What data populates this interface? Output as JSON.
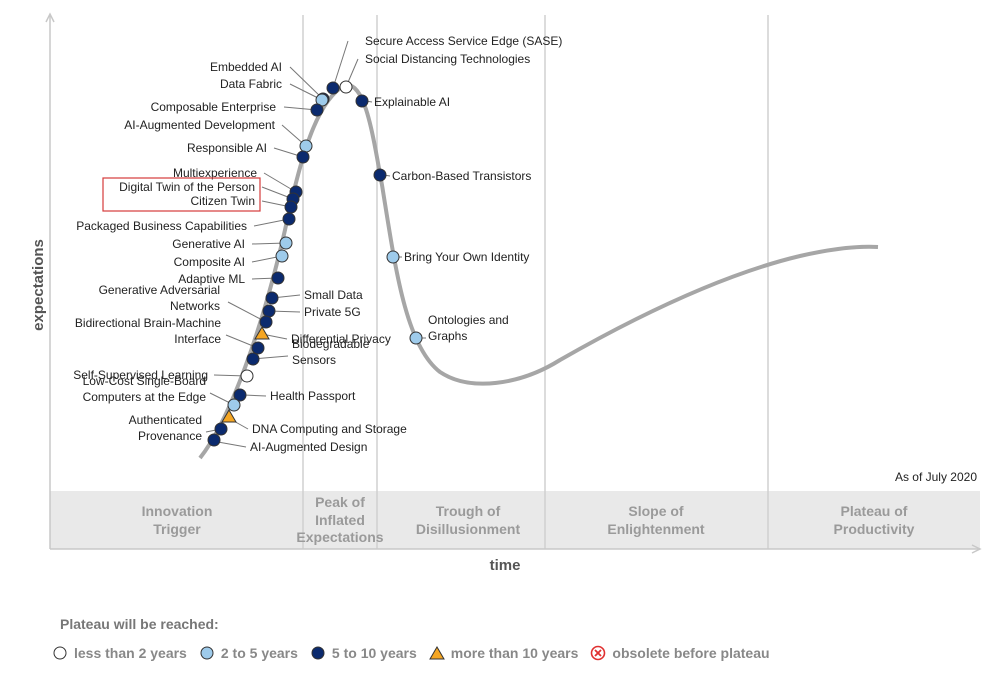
{
  "chart_data": {
    "type": "scatter",
    "ylabel": "expectations",
    "xlabel": "time",
    "as_of": "As of July 2020",
    "phases": [
      "Innovation Trigger",
      "Peak of Inflated Expectations",
      "Trough of Disillusionment",
      "Slope of Enlightenment",
      "Plateau of Productivity"
    ],
    "legend_title": "Plateau will be reached:",
    "legend": [
      {
        "key": "lt2",
        "label": "less than 2 years",
        "fill": "#ffffff"
      },
      {
        "key": "2to5",
        "label": "2 to 5 years",
        "fill": "#9ecbeb"
      },
      {
        "key": "5to10",
        "label": "5 to 10 years",
        "fill": "#0b2a6e"
      },
      {
        "key": "gt10",
        "label": "more than 10 years",
        "fill": "#f5a623"
      },
      {
        "key": "obsolete",
        "label": "obsolete before plateau",
        "fill": "#e03030"
      }
    ],
    "highlighted": "Digital Twin of the Person",
    "points": [
      {
        "name": "Secure Access Service Edge (SASE)",
        "category": "5to10"
      },
      {
        "name": "Social Distancing Technologies",
        "category": "lt2"
      },
      {
        "name": "Embedded AI",
        "category": "5to10"
      },
      {
        "name": "Data Fabric",
        "category": "2to5"
      },
      {
        "name": "Explainable AI",
        "category": "5to10"
      },
      {
        "name": "Composable Enterprise",
        "category": "5to10"
      },
      {
        "name": "AI-Augmented Development",
        "category": "2to5"
      },
      {
        "name": "Responsible AI",
        "category": "5to10"
      },
      {
        "name": "Carbon-Based Transistors",
        "category": "5to10"
      },
      {
        "name": "Multiexperience",
        "category": "5to10"
      },
      {
        "name": "Digital Twin of the Person",
        "category": "5to10"
      },
      {
        "name": "Citizen Twin",
        "category": "5to10"
      },
      {
        "name": "Packaged Business Capabilities",
        "category": "5to10"
      },
      {
        "name": "Generative AI",
        "category": "2to5"
      },
      {
        "name": "Composite AI",
        "category": "2to5"
      },
      {
        "name": "Bring Your Own Identity",
        "category": "2to5"
      },
      {
        "name": "Adaptive ML",
        "category": "5to10"
      },
      {
        "name": "Small Data",
        "category": "5to10"
      },
      {
        "name": "Private 5G",
        "category": "5to10"
      },
      {
        "name": "Generative Adversarial Networks",
        "category": "5to10"
      },
      {
        "name": "Differential Privacy",
        "category": "gt10"
      },
      {
        "name": "Ontologies and Graphs",
        "category": "2to5"
      },
      {
        "name": "Bidirectional Brain-Machine Interface",
        "category": "5to10"
      },
      {
        "name": "Biodegradable Sensors",
        "category": "5to10"
      },
      {
        "name": "Self-Supervised Learning",
        "category": "lt2"
      },
      {
        "name": "Health Passport",
        "category": "5to10"
      },
      {
        "name": "Low-Cost Single-Board Computers at the Edge",
        "category": "2to5"
      },
      {
        "name": "DNA Computing and Storage",
        "category": "gt10"
      },
      {
        "name": "Authenticated Provenance",
        "category": "5to10"
      },
      {
        "name": "AI-Augmented Design",
        "category": "5to10"
      }
    ]
  }
}
